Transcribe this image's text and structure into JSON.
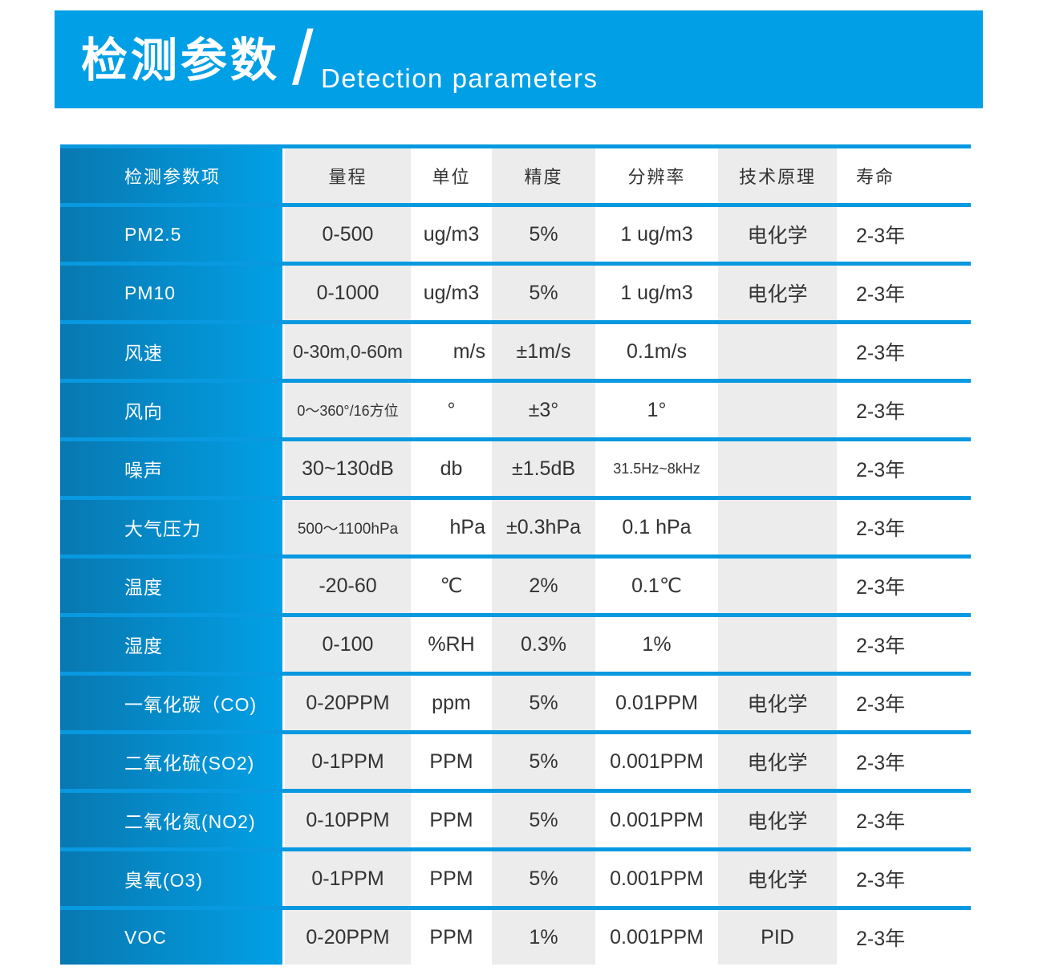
{
  "banner": {
    "title_zh": "检测参数",
    "divider": "/",
    "title_en": "Detection parameters"
  },
  "table": {
    "columns": [
      "检测参数项",
      "量程",
      "单位",
      "精度",
      "分辨率",
      "技术原理",
      "寿命"
    ],
    "rows": [
      {
        "param": "PM2.5",
        "range": "0-500",
        "unit": "ug/m3",
        "accuracy": "5%",
        "resolution": "1 ug/m3",
        "principle": "电化学",
        "lifespan": "2-3年"
      },
      {
        "param": "PM10",
        "range": "0-1000",
        "unit": "ug/m3",
        "accuracy": "5%",
        "resolution": "1 ug/m3",
        "principle": "电化学",
        "lifespan": "2-3年"
      },
      {
        "param": "风速",
        "range": "0-30m,0-60m",
        "unit": "m/s",
        "accuracy": "±1m/s",
        "resolution": "0.1m/s",
        "principle": "",
        "lifespan": "2-3年"
      },
      {
        "param": "风向",
        "range": "0～360°/16方位",
        "unit": "°",
        "accuracy": "±3°",
        "resolution": "1°",
        "principle": "",
        "lifespan": "2-3年"
      },
      {
        "param": "噪声",
        "range": "30~130dB",
        "unit": "db",
        "accuracy": "±1.5dB",
        "resolution": "31.5Hz~8kHz",
        "principle": "",
        "lifespan": "2-3年"
      },
      {
        "param": "大气压力",
        "range": "500～1100hPa",
        "unit": "hPa",
        "accuracy": "±0.3hPa",
        "resolution": "0.1 hPa",
        "principle": "",
        "lifespan": "2-3年"
      },
      {
        "param": "温度",
        "range": "-20-60",
        "unit": "℃",
        "accuracy": "2%",
        "resolution": "0.1℃",
        "principle": "",
        "lifespan": "2-3年"
      },
      {
        "param": "湿度",
        "range": "0-100",
        "unit": "%RH",
        "accuracy": "0.3%",
        "resolution": "1%",
        "principle": "",
        "lifespan": "2-3年"
      },
      {
        "param": "一氧化碳（CO)",
        "range": "0-20PPM",
        "unit": "ppm",
        "accuracy": "5%",
        "resolution": "0.01PPM",
        "principle": "电化学",
        "lifespan": "2-3年"
      },
      {
        "param": "二氧化硫(SO2)",
        "range": "0-1PPM",
        "unit": "PPM",
        "accuracy": "5%",
        "resolution": "0.001PPM",
        "principle": "电化学",
        "lifespan": "2-3年"
      },
      {
        "param": "二氧化氮(NO2)",
        "range": "0-10PPM",
        "unit": "PPM",
        "accuracy": "5%",
        "resolution": "0.001PPM",
        "principle": "电化学",
        "lifespan": "2-3年"
      },
      {
        "param": "臭氧(O3)",
        "range": "0-1PPM",
        "unit": "PPM",
        "accuracy": "5%",
        "resolution": "0.001PPM",
        "principle": "电化学",
        "lifespan": "2-3年"
      },
      {
        "param": "VOC",
        "range": "0-20PPM",
        "unit": "PPM",
        "accuracy": "1%",
        "resolution": "0.001PPM",
        "principle": "PID",
        "lifespan": "2-3年"
      }
    ]
  },
  "colors": {
    "accent": "#019fe6",
    "table_bg": "#0899e0",
    "param_gradient_start": "#0878b0",
    "param_gradient_end": "#02a0e6",
    "cell_gray": "#ececec",
    "text": "#333333"
  }
}
